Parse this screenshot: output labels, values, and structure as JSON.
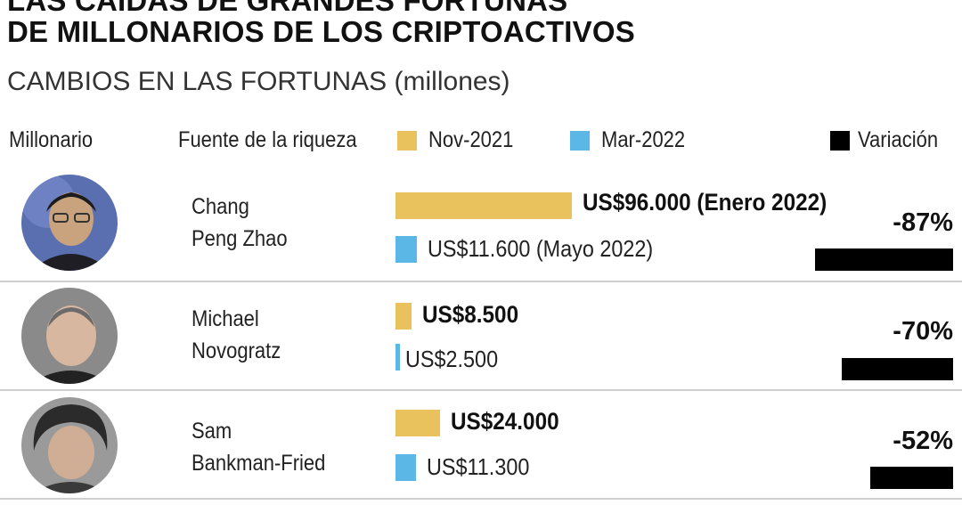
{
  "header": {
    "title_line1": "LAS CAÍDAS DE GRANDES FORTUNAS",
    "title_line2": "DE MILLONARIOS DE LOS CRIPTOACTIVOS",
    "subtitle": "CAMBIOS EN LAS FORTUNAS (millones)"
  },
  "columns": {
    "millionaire": "Millonario",
    "source": "Fuente de la riqueza",
    "legend_nov": "Nov-2021",
    "legend_mar": "Mar-2022",
    "legend_var": "Variación"
  },
  "colors": {
    "nov": "#e9c25e",
    "mar": "#5bb7e6",
    "variation": "#000000"
  },
  "chart_data": {
    "type": "bar",
    "title": "LAS CAÍDAS DE GRANDES FORTUNAS DE MILLONARIOS DE LOS CRIPTOACTIVOS",
    "subtitle": "CAMBIOS EN LAS FORTUNAS (millones)",
    "categories": [
      "Chang Peng Zhao",
      "Michael Novogratz",
      "Sam Bankman-Fried"
    ],
    "series": [
      {
        "name": "Nov-2021",
        "values": [
          96000,
          8500,
          24000
        ]
      },
      {
        "name": "Mar-2022",
        "values": [
          11600,
          2500,
          11300
        ]
      },
      {
        "name": "Variación",
        "values": [
          -87,
          -70,
          -52
        ]
      }
    ],
    "rows": [
      {
        "name_line1": "Chang",
        "name_line2": "Peng Zhao",
        "nov_value": 96000,
        "mar_value": 11600,
        "nov_label": "US$96.000 (Enero 2022)",
        "mar_label": "US$11.600 (Mayo 2022)",
        "variation": -87,
        "variation_label": "-87%"
      },
      {
        "name_line1": "Michael",
        "name_line2": "Novogratz",
        "nov_value": 8500,
        "mar_value": 2500,
        "nov_label": "US$8.500",
        "mar_label": "US$2.500",
        "variation": -70,
        "variation_label": "-70%"
      },
      {
        "name_line1": "Sam",
        "name_line2": "Bankman-Fried",
        "nov_value": 24000,
        "mar_value": 11300,
        "nov_label": "US$24.000",
        "mar_label": "US$11.300",
        "variation": -52,
        "variation_label": "-52%"
      }
    ]
  }
}
